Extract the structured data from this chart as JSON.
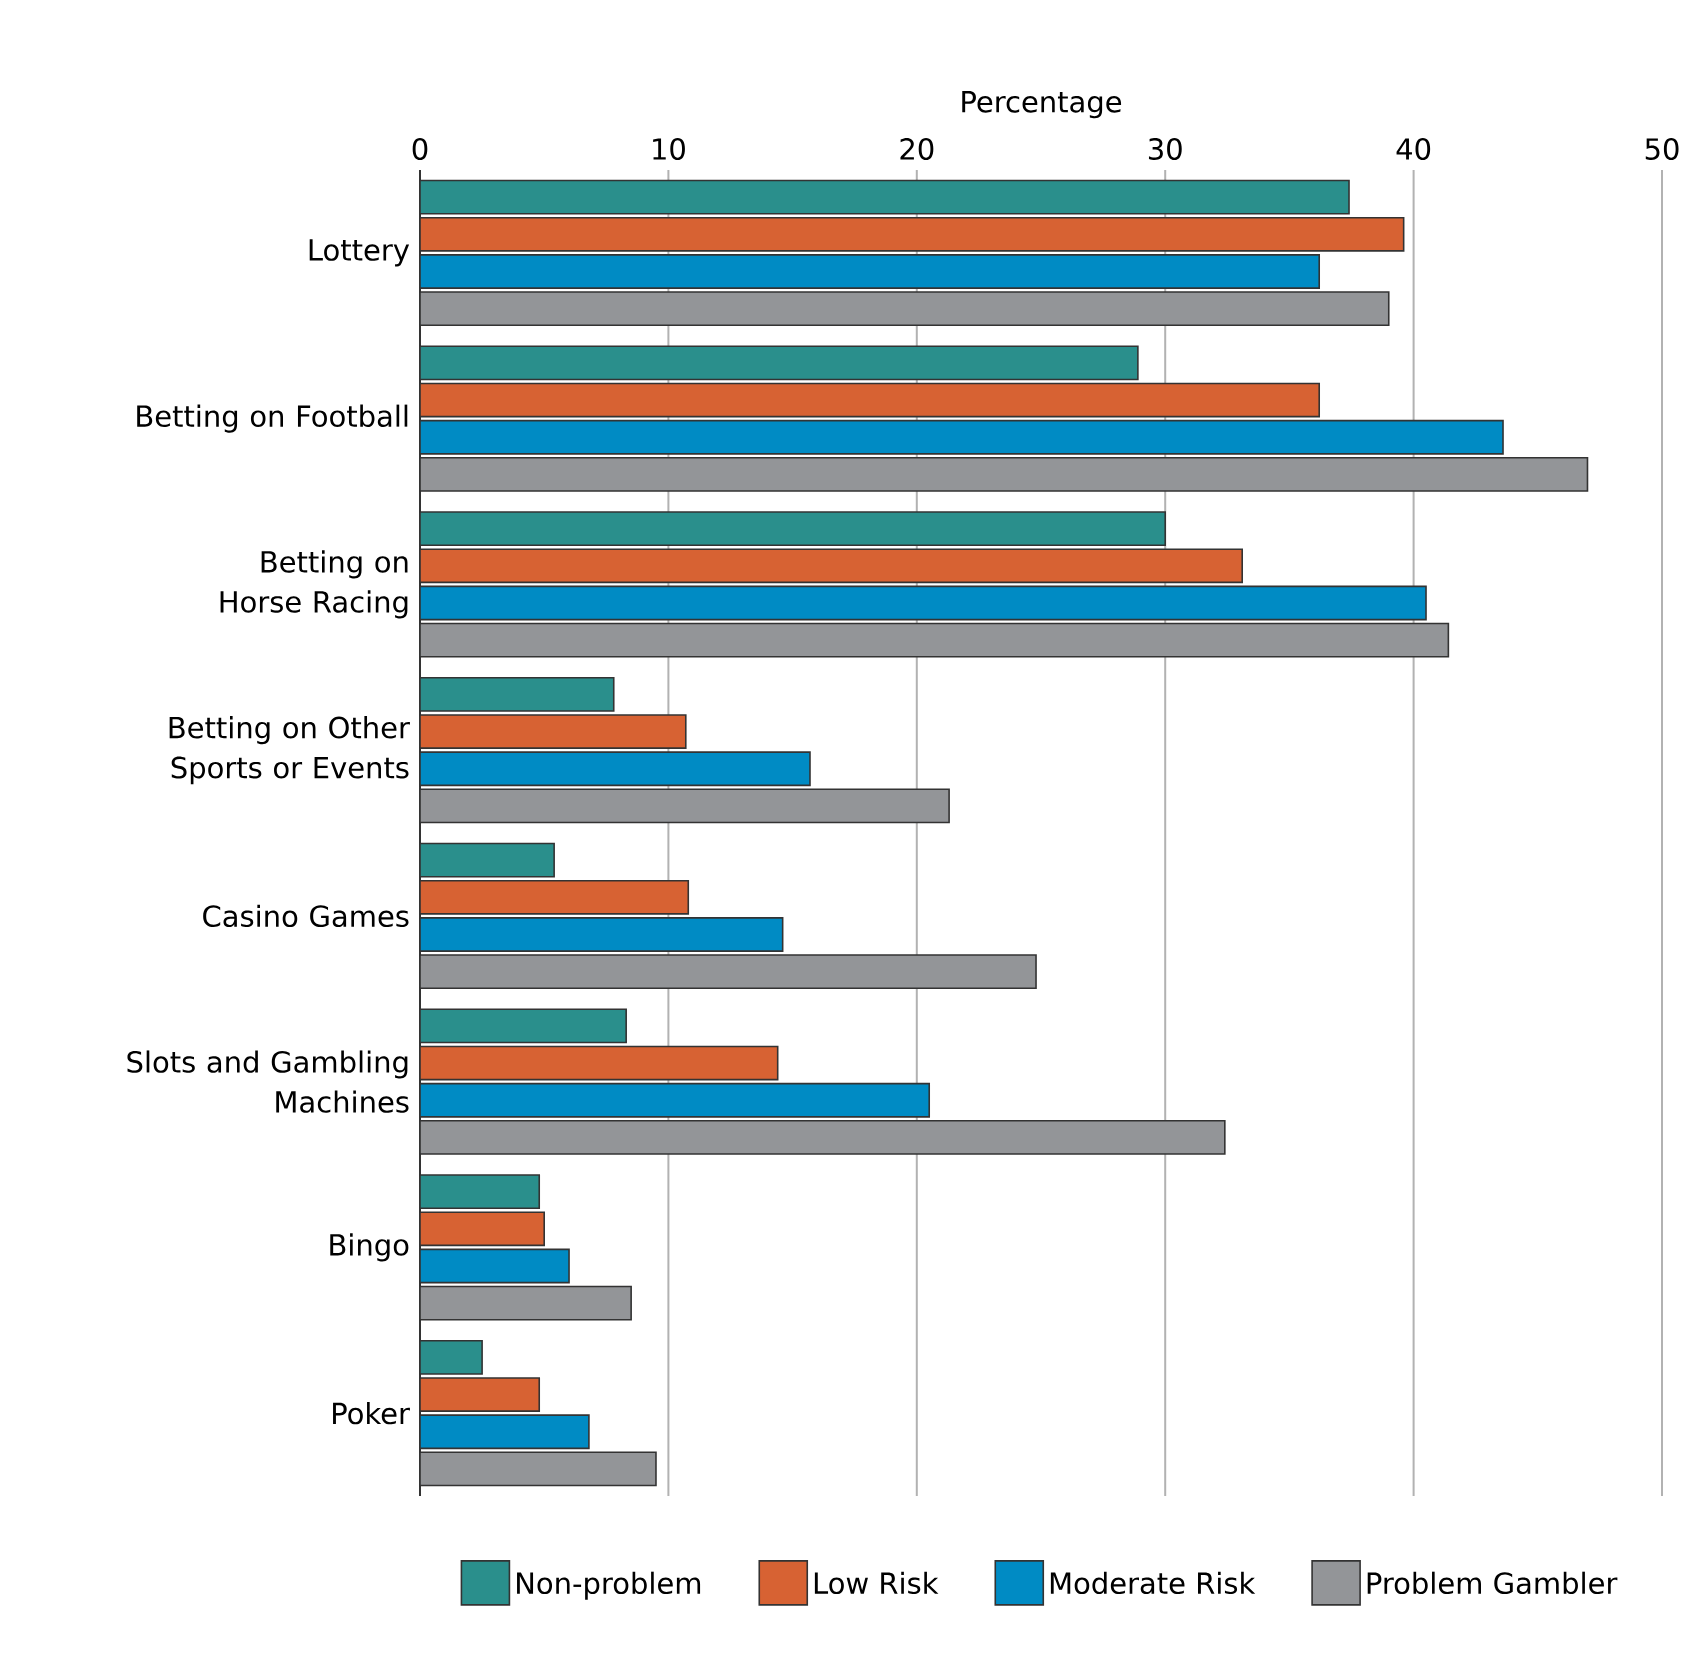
{
  "chart_data": {
    "type": "bar",
    "orientation": "horizontal",
    "xlabel": "Percentage",
    "categories": [
      "Lottery",
      "Betting on Football",
      "Betting on Horse Racing",
      "Betting on Other Sports or Events",
      "Casino Games",
      "Slots and Gambling Machines",
      "Bingo",
      "Poker"
    ],
    "series": [
      {
        "name": "Non-problem",
        "color": "#2a8f8c",
        "values": [
          37.4,
          28.9,
          30.0,
          7.8,
          5.4,
          8.3,
          4.8,
          2.5
        ]
      },
      {
        "name": "Low Risk",
        "color": "#d76233",
        "values": [
          39.6,
          36.2,
          33.1,
          10.7,
          10.8,
          14.4,
          5.0,
          4.8
        ]
      },
      {
        "name": "Moderate Risk",
        "color": "#008bc4",
        "values": [
          36.2,
          43.6,
          40.5,
          15.7,
          14.6,
          20.5,
          6.0,
          6.8
        ]
      },
      {
        "name": "Problem Gambler",
        "color": "#939598",
        "values": [
          39.0,
          47.0,
          41.4,
          21.3,
          24.8,
          32.4,
          8.5,
          9.5
        ]
      }
    ],
    "xlim": [
      0,
      50
    ],
    "xticks": [
      0,
      10,
      20,
      30,
      40,
      50
    ],
    "grid": "x",
    "legend": "bottom"
  }
}
